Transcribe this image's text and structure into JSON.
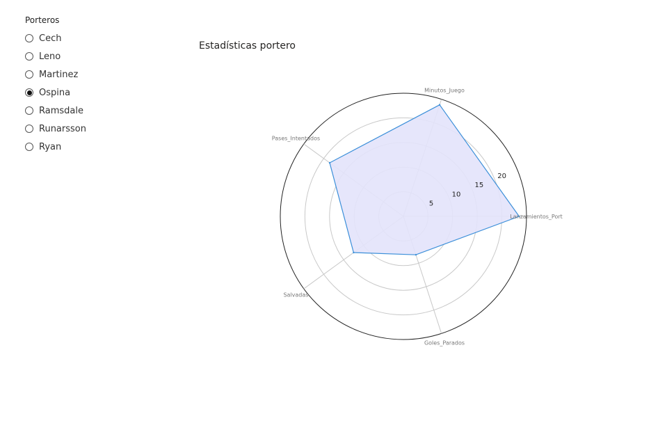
{
  "slicer": {
    "title": "Porteros",
    "options": [
      "Cech",
      "Leno",
      "Martinez",
      "Ospina",
      "Ramsdale",
      "Runarsson",
      "Ryan"
    ],
    "selected": "Ospina"
  },
  "chart_data": {
    "type": "radar",
    "title": "Estadísticas portero",
    "axes": [
      "Lanzamientos_Port",
      "Minutos_Juego",
      "Pases_Intentados",
      "Salvadas",
      "Goles_Parados"
    ],
    "values": [
      23.5,
      23.8,
      18.5,
      12.5,
      8.2
    ],
    "rmax": 25,
    "ticks": [
      5,
      10,
      15,
      20
    ],
    "colors": {
      "fill": "#e3e3fb",
      "line": "#3b8fd9",
      "grid": "#c8c8c8",
      "outer": "#222222"
    }
  }
}
